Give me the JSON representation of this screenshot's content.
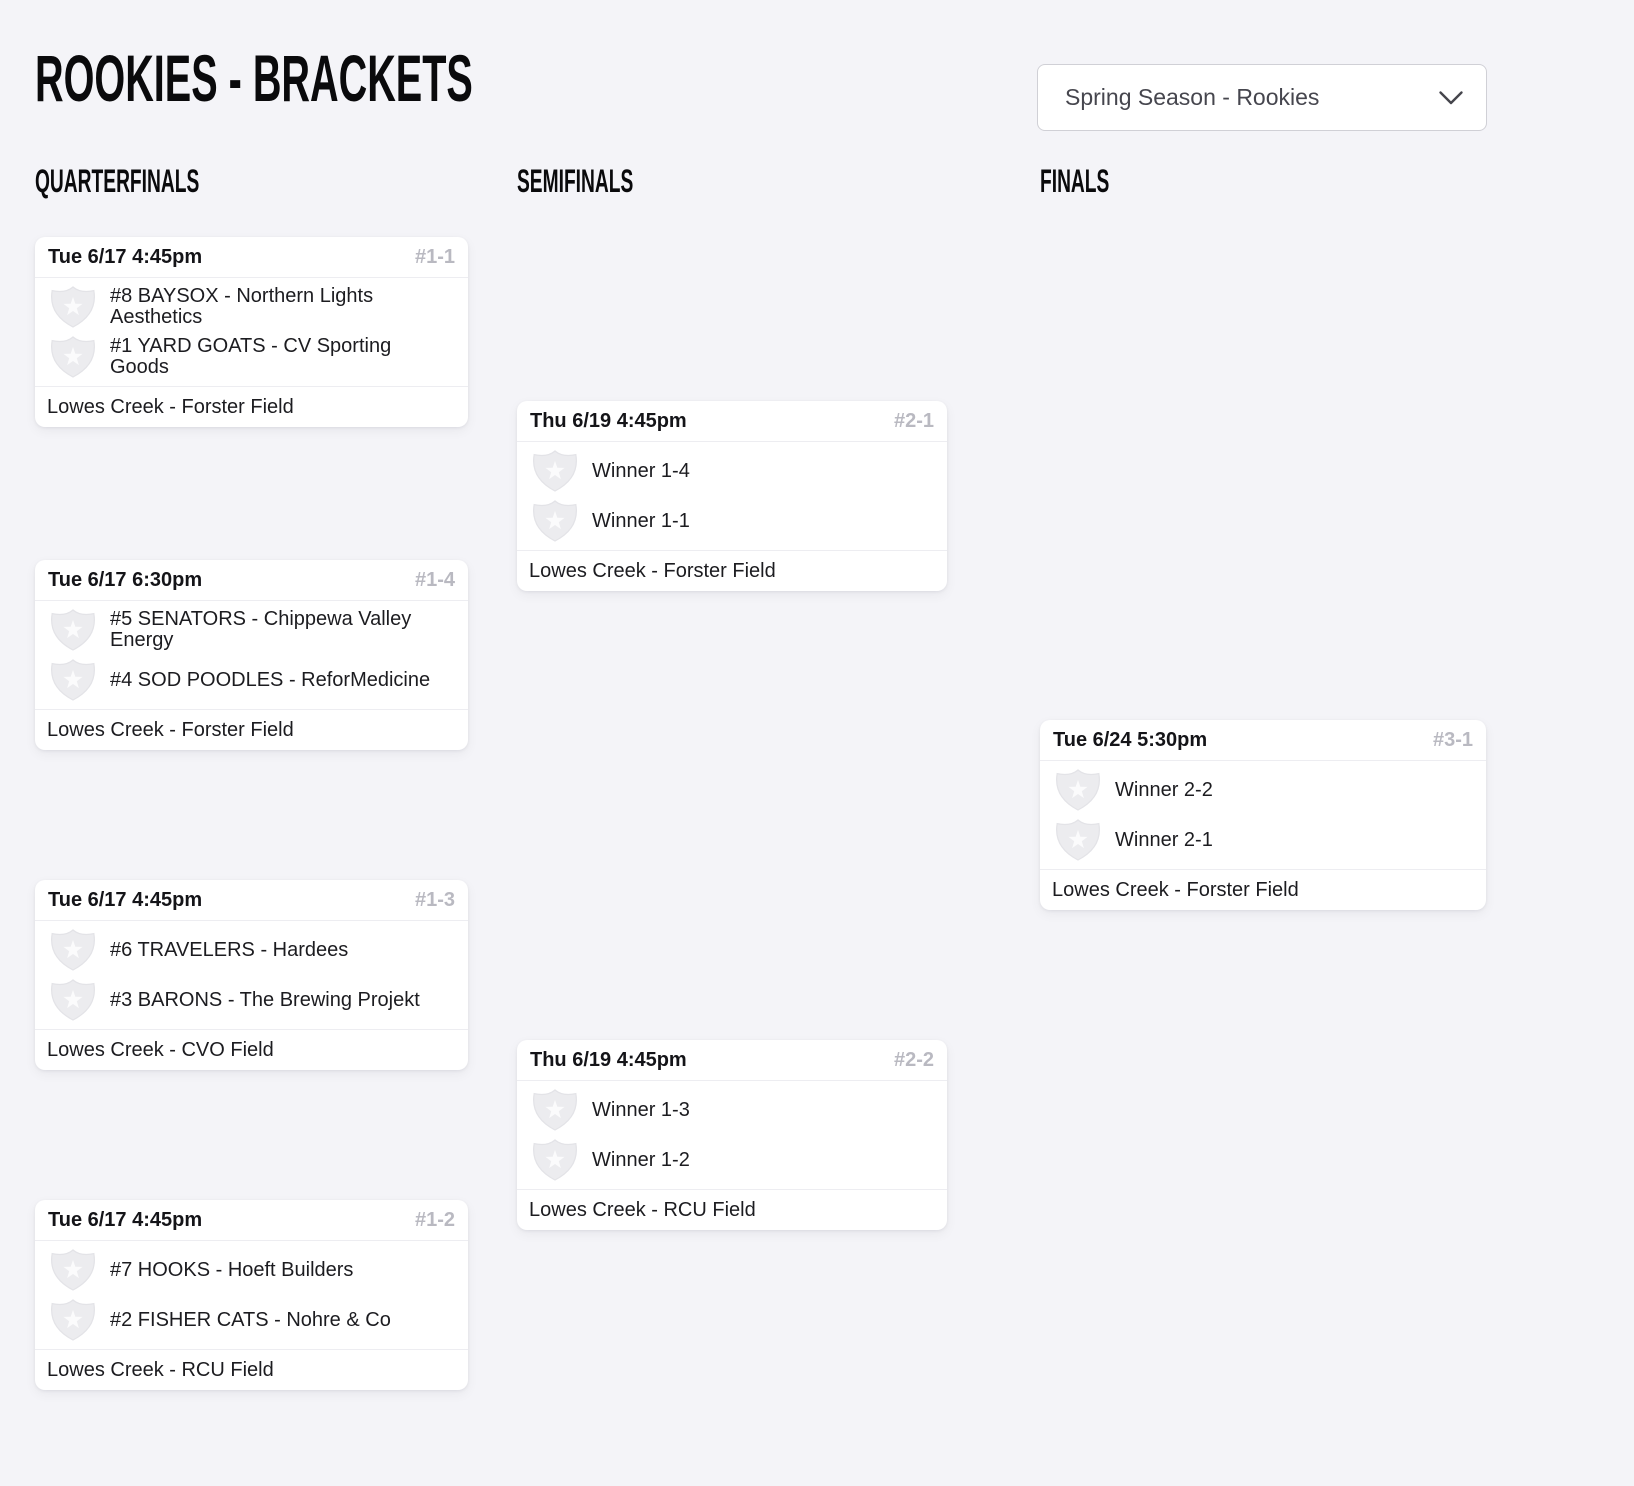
{
  "header": {
    "title": "ROOKIES - BRACKETS",
    "season_select": {
      "value": "Spring Season - Rookies",
      "icon": "chevron-down-icon"
    }
  },
  "icons": {
    "team_badge": "shield-star-icon"
  },
  "columns": [
    {
      "label": "QUARTERFINALS",
      "matches": [
        {
          "code": "#1-1",
          "datetime": "Tue 6/17 4:45pm",
          "teams": [
            "#8 BAYSOX - Northern Lights\nAesthetics",
            "#1 YARD GOATS - CV Sporting\nGoods"
          ],
          "location": "Lowes Creek - Forster Field"
        },
        {
          "code": "#1-4",
          "datetime": "Tue 6/17 6:30pm",
          "teams": [
            "#5 SENATORS - Chippewa Valley\nEnergy",
            "#4 SOD POODLES - ReforMedicine"
          ],
          "location": "Lowes Creek - Forster Field"
        },
        {
          "code": "#1-3",
          "datetime": "Tue 6/17 4:45pm",
          "teams": [
            "#6 TRAVELERS - Hardees",
            "#3 BARONS - The Brewing Projekt"
          ],
          "location": "Lowes Creek - CVO Field"
        },
        {
          "code": "#1-2",
          "datetime": "Tue 6/17 4:45pm",
          "teams": [
            "#7 HOOKS - Hoeft Builders",
            "#2 FISHER CATS - Nohre & Co"
          ],
          "location": "Lowes Creek - RCU Field"
        }
      ]
    },
    {
      "label": "SEMIFINALS",
      "matches": [
        {
          "code": "#2-1",
          "datetime": "Thu 6/19 4:45pm",
          "teams": [
            "Winner 1-4",
            "Winner 1-1"
          ],
          "location": "Lowes Creek - Forster Field"
        },
        {
          "code": "#2-2",
          "datetime": "Thu 6/19 4:45pm",
          "teams": [
            "Winner 1-3",
            "Winner 1-2"
          ],
          "location": "Lowes Creek - RCU Field"
        }
      ]
    },
    {
      "label": "FINALS",
      "matches": [
        {
          "code": "#3-1",
          "datetime": "Tue 6/24 5:30pm",
          "teams": [
            "Winner 2-2",
            "Winner 2-1"
          ],
          "location": "Lowes Creek - Forster Field"
        }
      ]
    }
  ]
}
